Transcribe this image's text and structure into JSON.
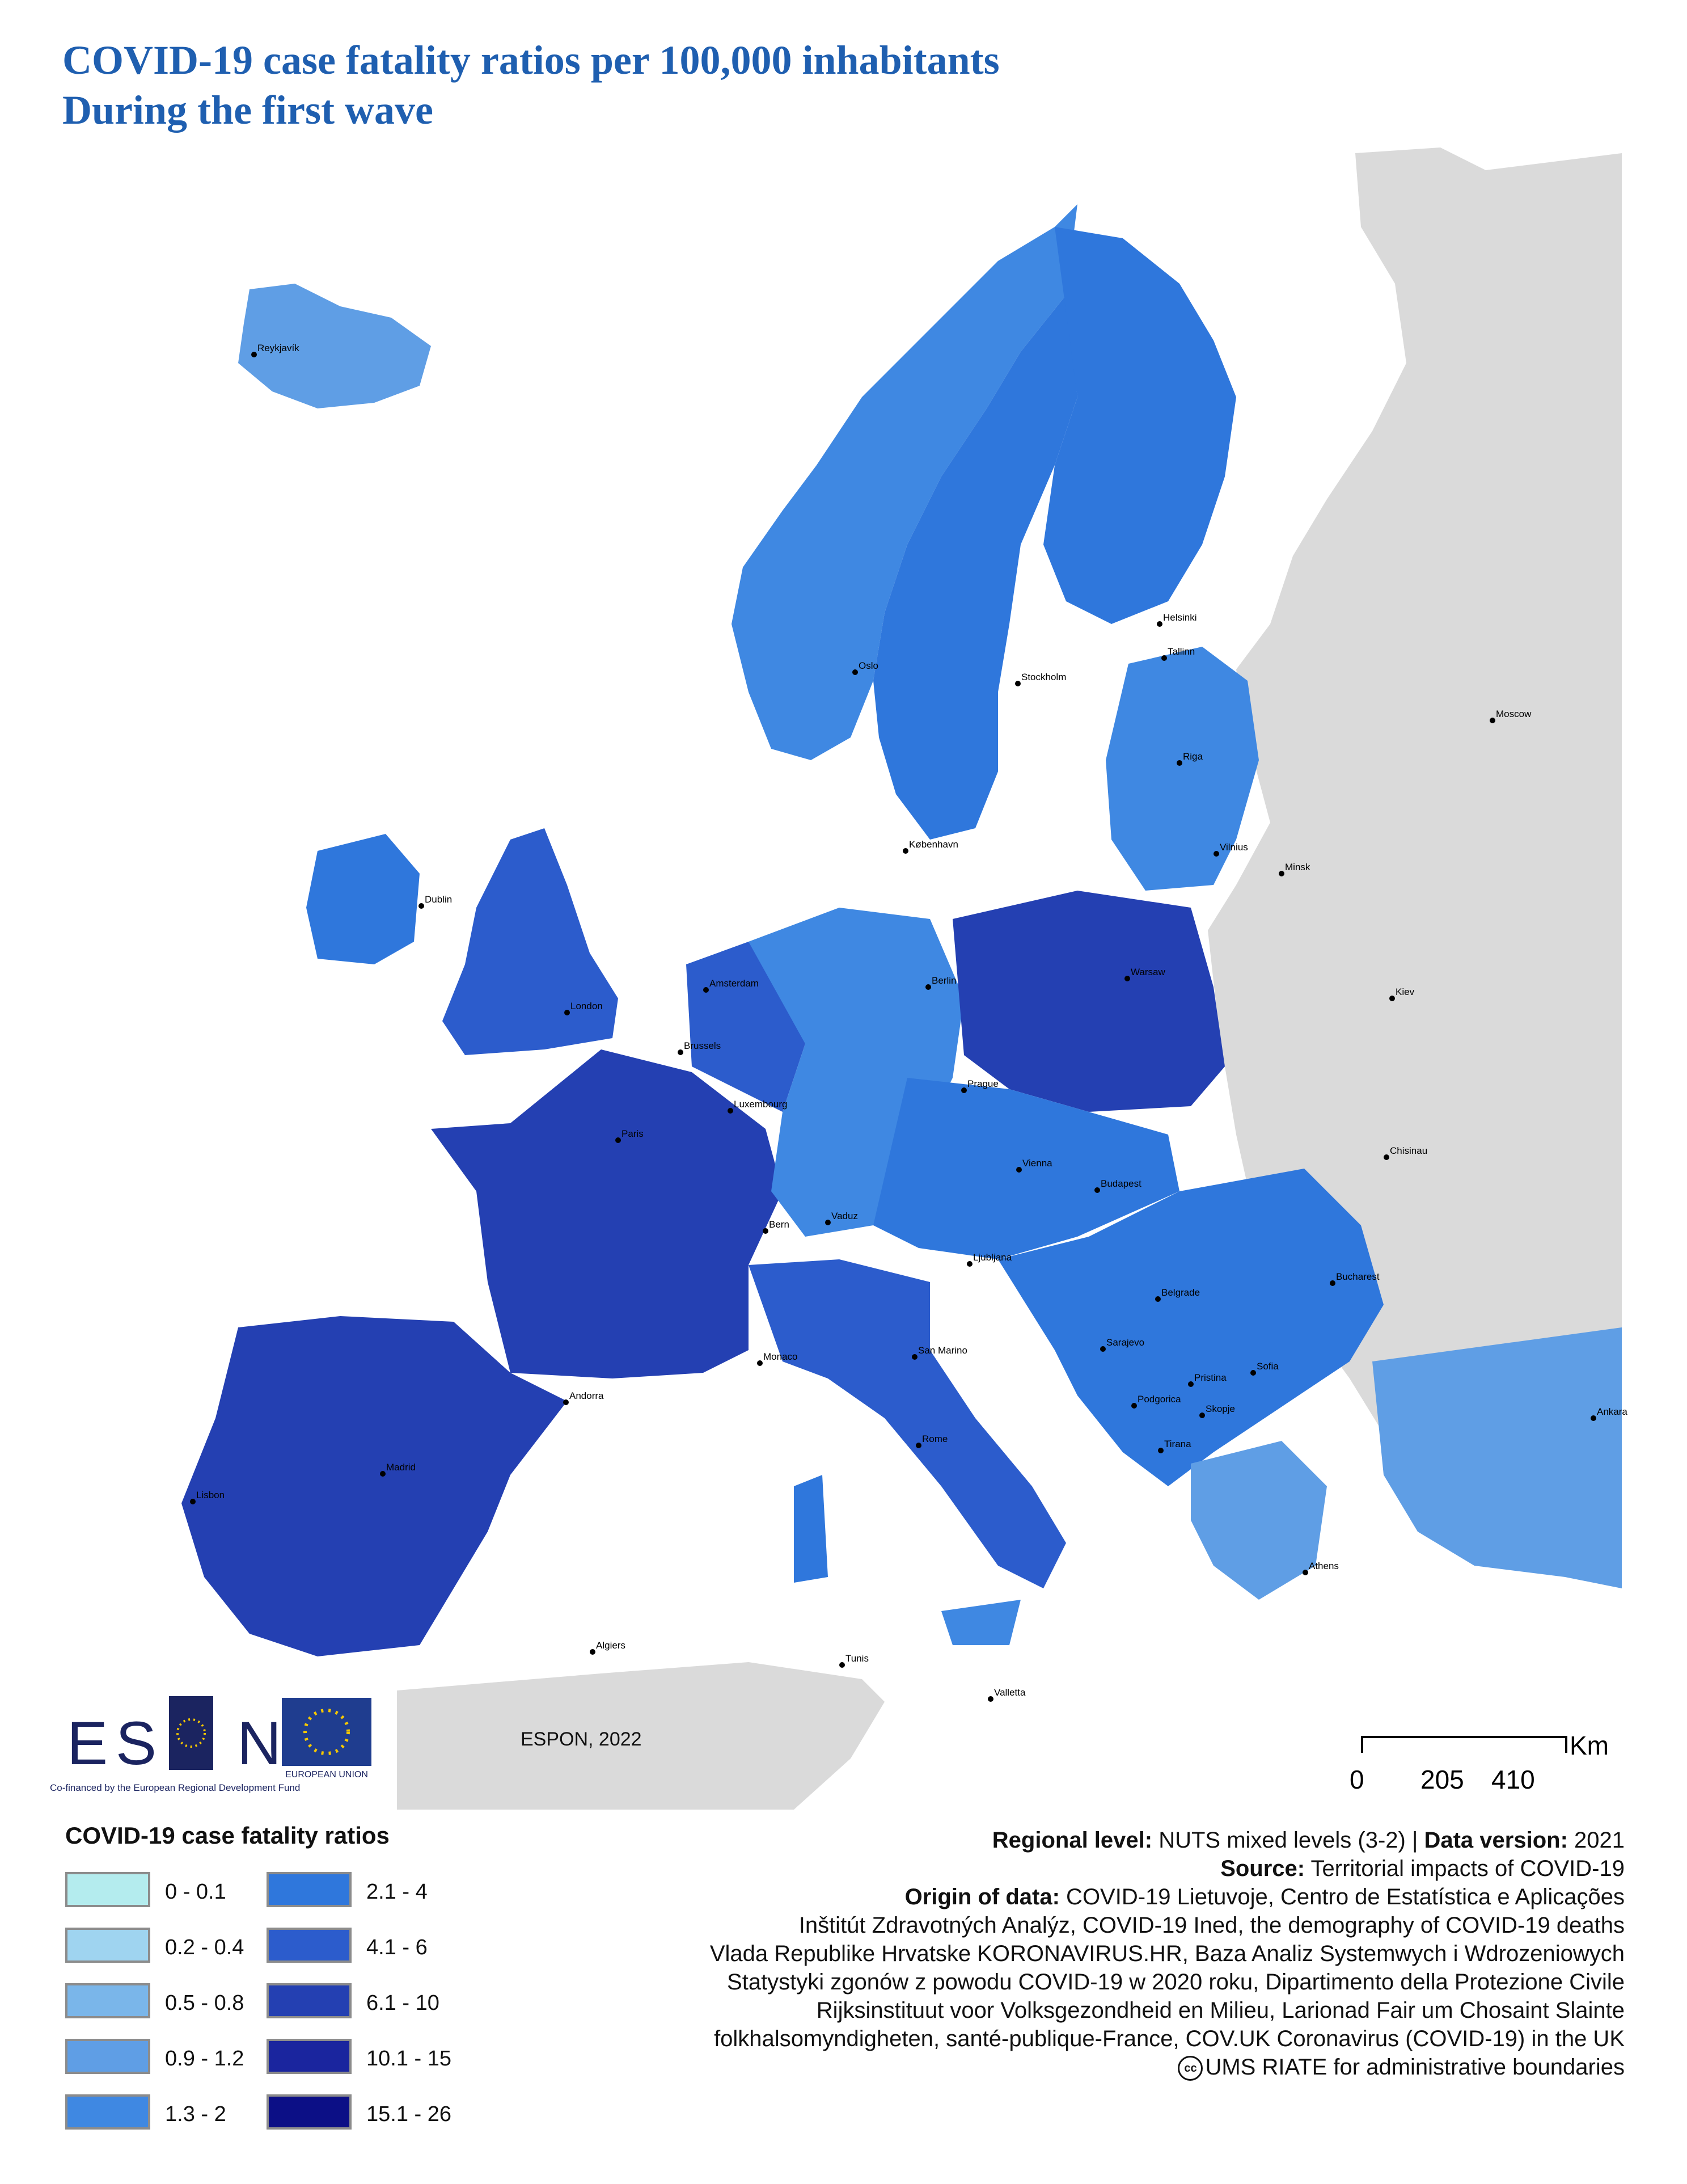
{
  "title": {
    "line1": "COVID-19 case fatality ratios per 100,000 inhabitants",
    "line2": "During the first wave"
  },
  "cities": [
    "Reykjavík",
    "Oslo",
    "Stockholm",
    "Helsinki",
    "Tallinn",
    "Riga",
    "Moscow",
    "København",
    "Vilnius",
    "Minsk",
    "Dublin",
    "Amsterdam",
    "Berlin",
    "Warsaw",
    "London",
    "Brussels",
    "Luxembourg",
    "Prague",
    "Kiev",
    "Paris",
    "Vienna",
    "Chisinau",
    "Budapest",
    "Vaduz",
    "Bern",
    "Ljubljana",
    "Bucharest",
    "Belgrade",
    "Sarajevo",
    "San Marino",
    "Monaco",
    "Andorra",
    "Pristina",
    "Sofia",
    "Podgorica",
    "Skopje",
    "Ankara",
    "Madrid",
    "Rome",
    "Tirana",
    "Lisbon",
    "Athens",
    "Algiers",
    "Tunis",
    "Valletta"
  ],
  "branding": {
    "espon_word": "ESP   N",
    "espon_sub": "Co-financed by the European Regional Development Fund",
    "eu_label": "EUROPEAN UNION",
    "credit": "ESPON, 2022"
  },
  "scale": {
    "unit": "Km",
    "ticks": [
      "0",
      "205",
      "410"
    ]
  },
  "legend": {
    "title": "COVID-19 case fatality ratios",
    "classes": [
      {
        "label": "0 - 0.1",
        "color": "#b4ecee"
      },
      {
        "label": "0.2 - 0.4",
        "color": "#9fd4f0"
      },
      {
        "label": "0.5 - 0.8",
        "color": "#7ab6ea"
      },
      {
        "label": "0.9 - 1.2",
        "color": "#5f9ee5"
      },
      {
        "label": "1.3 - 2",
        "color": "#3f88e2"
      },
      {
        "label": "2.1 - 4",
        "color": "#2f77dc"
      },
      {
        "label": "4.1 - 6",
        "color": "#2c5ccc"
      },
      {
        "label": "6.1 - 10",
        "color": "#2440b2"
      },
      {
        "label": "10.1 - 15",
        "color": "#1a259e"
      },
      {
        "label": "15.1 - 26",
        "color": "#0c0f86"
      }
    ]
  },
  "meta": {
    "regional_level_key": "Regional level:",
    "regional_level_val": " NUTS mixed levels (3-2) | ",
    "data_version_key": "Data version:",
    "data_version_val": "  2021",
    "source_key": "Source:",
    "source_val": " Territorial impacts of COVID-19",
    "origin_key": "Origin of data:",
    "origin_val": "  COVID-19 Lietuvoje, Centro de Estatística e Aplicações",
    "origin_lines": [
      "Inštitút Zdravotných Analýz, COVID-19 Ined, the demography of COVID-19 deaths",
      "Vlada Republike Hrvatske KORONAVIRUS.HR, Baza Analiz Systemwych i Wdrozeniowych",
      "Statystyki zgonów z powodu COVID-19 w 2020 roku, Dipartimento della Protezione Civile",
      "Rijksinstituut voor Volksgezondheid en Milieu, Larionad Fair um Chosaint Slainte",
      "folkhalsomyndigheten, santé-publique-France, COV.UK Coronavirus (COVID-19) in the UK"
    ],
    "cc_symbol": "cc",
    "boundaries": "UMS RIATE for administrative boundaries"
  }
}
